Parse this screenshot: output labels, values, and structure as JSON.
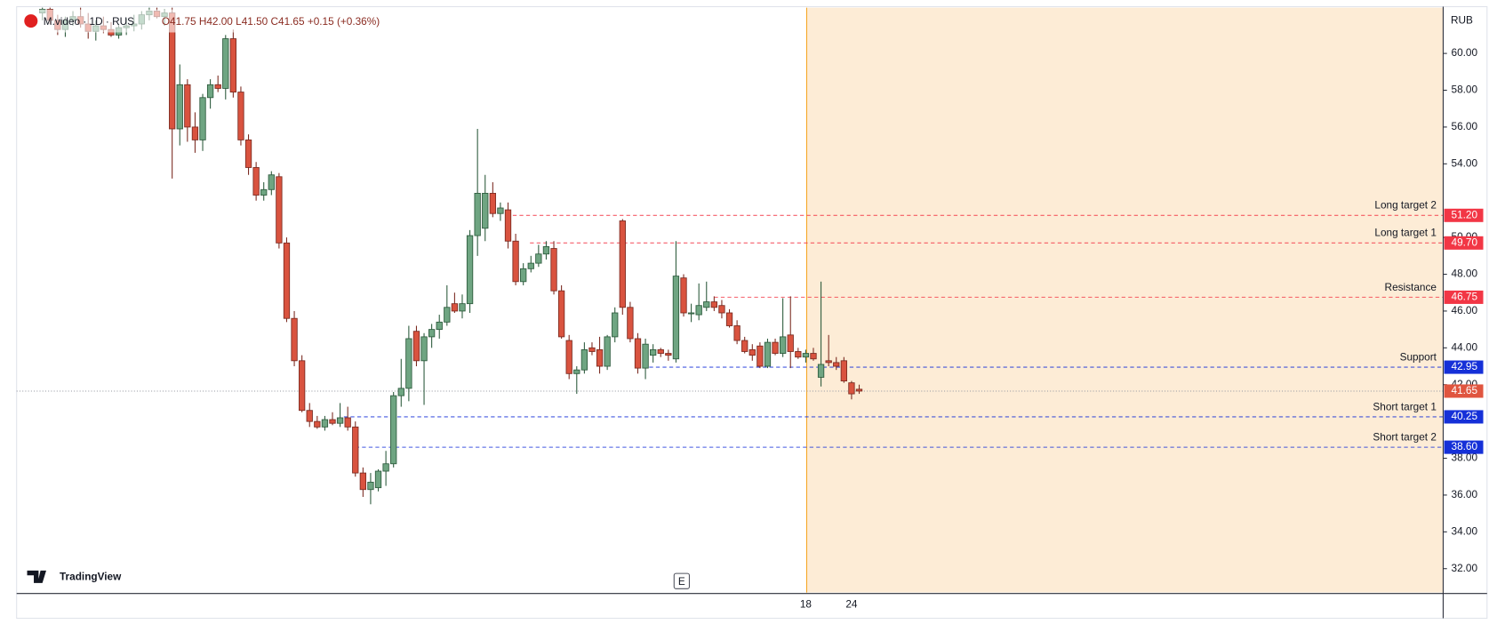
{
  "chart_data": {
    "type": "candlestick",
    "title": "M.video · 1D · RUS",
    "ohlc_text": "O41.75 H42.00 L41.50 C41.65 +0.15 (+0.36%)",
    "currency": "RUB",
    "brand": "TradingView",
    "event_marker": "E",
    "up_color": "#6fa582",
    "down_color": "#d9533f",
    "categories": [
      null,
      null,
      null,
      null,
      null,
      null,
      null,
      null,
      null,
      null,
      null,
      null,
      null,
      null,
      null,
      null,
      null,
      null,
      null,
      null,
      null,
      null,
      null,
      null,
      null,
      null,
      null,
      null,
      null,
      null,
      null,
      null,
      null,
      null,
      null,
      null,
      null,
      null,
      null,
      null,
      null,
      null,
      null,
      null,
      null,
      null,
      null,
      null,
      null,
      null,
      null,
      null,
      null,
      null,
      null,
      null,
      null,
      null,
      null,
      null,
      null,
      null,
      null,
      null,
      null,
      null,
      null,
      null,
      null,
      null,
      null,
      null,
      null,
      null,
      null,
      null,
      null,
      null,
      null,
      null,
      null,
      null,
      null,
      null,
      null,
      null,
      null,
      null,
      null,
      null,
      null,
      null,
      null,
      null,
      null,
      null,
      null,
      null,
      null,
      null,
      "18",
      null,
      null,
      null,
      null,
      null,
      "24",
      null
    ],
    "open": [
      62.2,
      62.4,
      61.8,
      61.3,
      61.8,
      62.0,
      61.6,
      61.2,
      61.5,
      61.3,
      61.0,
      61.4,
      61.5,
      61.6,
      62.1,
      62.3,
      62.0,
      62.2,
      55.9,
      58.3,
      56.0,
      55.3,
      57.6,
      58.3,
      58.1,
      60.8,
      57.9,
      55.3,
      53.8,
      52.3,
      52.6,
      53.3,
      49.7,
      45.6,
      43.3,
      40.6,
      40.0,
      39.7,
      40.1,
      39.9,
      40.2,
      39.7,
      37.2,
      36.3,
      36.4,
      37.3,
      37.7,
      41.4,
      41.8,
      44.9,
      43.3,
      44.6,
      45.0,
      45.4,
      46.4,
      46.0,
      46.4,
      50.1,
      50.5,
      52.4,
      51.3,
      51.5,
      49.8,
      47.6,
      48.3,
      48.6,
      49.1,
      49.4,
      47.1,
      44.4,
      42.6,
      42.8,
      44.0,
      43.9,
      43.0,
      44.6,
      50.9,
      46.2,
      44.5,
      42.9,
      43.6,
      43.9,
      43.7,
      43.4,
      47.8,
      45.9,
      45.8,
      46.2,
      46.5,
      46.3,
      45.9,
      45.2,
      44.4,
      43.9,
      44.1,
      43.0,
      44.3,
      43.7,
      44.7,
      43.8,
      43.5,
      43.7,
      42.4,
      43.3,
      43.2,
      43.3,
      42.1,
      41.75
    ],
    "high": [
      62.5,
      62.6,
      62.1,
      62.0,
      62.3,
      62.5,
      62.2,
      61.8,
      62.0,
      61.7,
      61.6,
      61.9,
      62.1,
      62.3,
      62.5,
      62.6,
      62.4,
      62.6,
      59.4,
      58.6,
      56.8,
      57.8,
      58.6,
      58.8,
      61.0,
      61.3,
      58.2,
      55.6,
      54.1,
      53.0,
      53.6,
      53.5,
      50.0,
      46.0,
      43.6,
      41.0,
      40.3,
      40.3,
      40.5,
      41.0,
      40.8,
      40.0,
      37.5,
      37.2,
      37.4,
      38.4,
      41.6,
      43.4,
      45.2,
      45.2,
      44.8,
      45.3,
      45.8,
      47.4,
      47.0,
      46.9,
      50.4,
      55.9,
      53.4,
      53.0,
      51.9,
      51.9,
      50.2,
      48.6,
      49.0,
      49.6,
      49.8,
      49.8,
      47.4,
      44.7,
      43.0,
      44.3,
      44.3,
      44.6,
      44.7,
      46.2,
      51.0,
      46.5,
      44.8,
      44.5,
      44.2,
      44.0,
      43.9,
      49.8,
      48.0,
      46.4,
      47.5,
      47.6,
      46.8,
      46.6,
      46.1,
      45.5,
      44.6,
      44.2,
      44.3,
      44.5,
      44.5,
      46.7,
      46.8,
      44.0,
      43.9,
      44.0,
      47.6,
      44.7,
      43.5,
      43.5,
      42.2,
      42.0
    ],
    "low": [
      61.8,
      61.6,
      61.0,
      60.9,
      61.5,
      61.4,
      60.8,
      60.7,
      61.1,
      60.9,
      60.8,
      61.0,
      61.2,
      61.3,
      61.8,
      61.9,
      61.5,
      53.2,
      55.0,
      55.2,
      54.6,
      54.7,
      57.0,
      57.9,
      57.5,
      57.6,
      55.0,
      53.4,
      52.0,
      52.0,
      52.3,
      49.4,
      45.4,
      43.0,
      40.5,
      39.7,
      39.6,
      39.5,
      39.8,
      39.7,
      39.5,
      37.0,
      35.9,
      35.5,
      36.2,
      36.5,
      37.5,
      40.8,
      41.1,
      43.0,
      40.9,
      44.0,
      44.5,
      45.2,
      45.9,
      45.6,
      45.9,
      49.0,
      49.8,
      51.1,
      50.9,
      49.4,
      47.4,
      47.4,
      48.1,
      48.4,
      48.8,
      46.9,
      44.5,
      42.3,
      41.5,
      42.6,
      43.6,
      42.6,
      42.8,
      44.3,
      45.8,
      44.3,
      42.6,
      42.3,
      43.2,
      43.5,
      43.3,
      43.2,
      45.7,
      45.4,
      45.5,
      46.0,
      46.0,
      45.6,
      45.1,
      44.2,
      43.7,
      43.3,
      42.9,
      42.9,
      43.6,
      43.5,
      42.9,
      43.4,
      43.2,
      43.3,
      41.9,
      43.0,
      42.8,
      42.1,
      41.2,
      41.5
    ],
    "close": [
      62.4,
      61.8,
      61.3,
      61.8,
      62.0,
      61.6,
      61.2,
      61.5,
      61.3,
      61.0,
      61.4,
      61.5,
      61.6,
      62.1,
      62.3,
      62.0,
      62.2,
      55.9,
      58.3,
      56.0,
      55.3,
      57.6,
      58.3,
      58.1,
      60.8,
      57.9,
      55.3,
      53.8,
      52.3,
      52.6,
      53.4,
      49.7,
      45.6,
      43.3,
      40.6,
      40.0,
      39.7,
      40.1,
      39.9,
      40.2,
      39.7,
      37.2,
      36.3,
      36.7,
      37.3,
      37.7,
      41.4,
      41.8,
      44.5,
      43.3,
      44.6,
      45.0,
      45.4,
      46.2,
      46.0,
      46.4,
      50.1,
      52.4,
      52.4,
      51.3,
      51.6,
      49.8,
      47.6,
      48.3,
      48.6,
      49.1,
      49.5,
      47.1,
      44.6,
      42.6,
      42.8,
      43.9,
      43.8,
      43.0,
      44.6,
      45.9,
      46.2,
      44.5,
      42.9,
      44.2,
      43.9,
      43.7,
      43.6,
      47.9,
      45.9,
      45.9,
      46.3,
      46.5,
      46.2,
      45.9,
      45.2,
      44.4,
      43.8,
      43.6,
      43.0,
      44.3,
      43.7,
      44.6,
      43.8,
      43.5,
      43.7,
      43.4,
      43.1,
      43.2,
      43.0,
      42.2,
      41.5,
      41.65
    ],
    "ylim": [
      31.0,
      62.5
    ],
    "yticks": [
      {
        "value": 60,
        "label": "60.00"
      },
      {
        "value": 58,
        "label": "58.00"
      },
      {
        "value": 56,
        "label": "56.00"
      },
      {
        "value": 54,
        "label": "54.00"
      },
      {
        "value": 50,
        "label": "50.00"
      },
      {
        "value": 48,
        "label": "48.00"
      },
      {
        "value": 46,
        "label": "46.00"
      },
      {
        "value": 44,
        "label": "44.00"
      },
      {
        "value": 42,
        "label": "42.00"
      },
      {
        "value": 38,
        "label": "38.00"
      },
      {
        "value": 36,
        "label": "36.00"
      },
      {
        "value": 34,
        "label": "34.00"
      },
      {
        "value": 32,
        "label": "32.00"
      }
    ],
    "levels": [
      {
        "label": "Long target 2",
        "value": 51.2,
        "value_label": "51.20",
        "color": "#f23645"
      },
      {
        "label": "Long target 1",
        "value": 49.7,
        "value_label": "49.70",
        "color": "#f23645"
      },
      {
        "label": "Resistance",
        "value": 46.75,
        "value_label": "46.75",
        "color": "#f23645"
      },
      {
        "label": "Support",
        "value": 42.95,
        "value_label": "42.95",
        "color": "#1530d8"
      },
      {
        "label": "Short target 1",
        "value": 40.25,
        "value_label": "40.25",
        "color": "#1530d8"
      },
      {
        "label": "Short target 2",
        "value": 38.6,
        "value_label": "38.60",
        "color": "#1530d8"
      }
    ],
    "last_price": {
      "value": 41.65,
      "label": "41.65",
      "color": "#e0553f"
    },
    "highlight_color": "#fdecd6"
  }
}
